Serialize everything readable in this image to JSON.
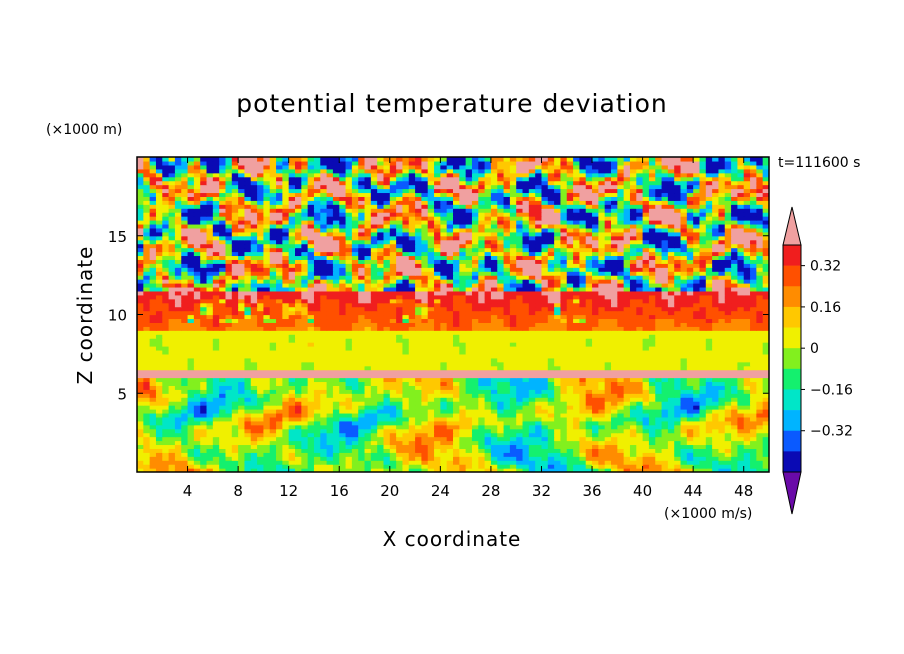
{
  "chart_data": {
    "type": "heatmap",
    "subtype": "filled-contour",
    "title": "potential temperature deviation",
    "time_label": "t=111600 s",
    "xlabel": "X coordinate",
    "ylabel": "Z coordinate",
    "x_unit": "(×1000 m/s)",
    "y_unit": "(×1000 m)",
    "xlim": [
      0,
      50
    ],
    "ylim": [
      0,
      20
    ],
    "x_ticks": [
      "4",
      "8",
      "12",
      "16",
      "20",
      "24",
      "28",
      "32",
      "36",
      "40",
      "44",
      "48"
    ],
    "y_ticks": [
      "5",
      "10",
      "15"
    ],
    "colorbar": {
      "levels": [
        -0.4,
        -0.32,
        -0.24,
        -0.16,
        -0.08,
        0,
        0.08,
        0.16,
        0.24,
        0.32,
        0.4
      ],
      "labels": [
        "0.32",
        "0.16",
        "0",
        "−0.16",
        "−0.32"
      ],
      "colors": [
        "#6a0aa8",
        "#0a0ab4",
        "#0a5aff",
        "#00b4ff",
        "#00e6c8",
        "#14f06e",
        "#82f01e",
        "#f0f000",
        "#ffc800",
        "#ff8c00",
        "#ff5000",
        "#f01e1e",
        "#f0a0a0"
      ]
    },
    "layers": [
      {
        "z_range": [
          0,
          6
        ],
        "description": "mixed band with bottom oscillations",
        "dominant": [
          "#00b4ff",
          "#14f06e",
          "#82f01e",
          "#ffc800"
        ]
      },
      {
        "z_range": [
          6,
          6.5
        ],
        "description": "thin maximum layer",
        "color": "#f0a0a0"
      },
      {
        "z_range": [
          6.5,
          9
        ],
        "description": "near-zero layer",
        "color": "#82f01e"
      },
      {
        "z_range": [
          9,
          11.5
        ],
        "description": "positive layer",
        "color": "#ff5000"
      },
      {
        "z_range": [
          11.5,
          20
        ],
        "description": "alternating maxima and minima",
        "dominant": [
          "#f0a0a0",
          "#6a0aa8"
        ]
      }
    ]
  }
}
